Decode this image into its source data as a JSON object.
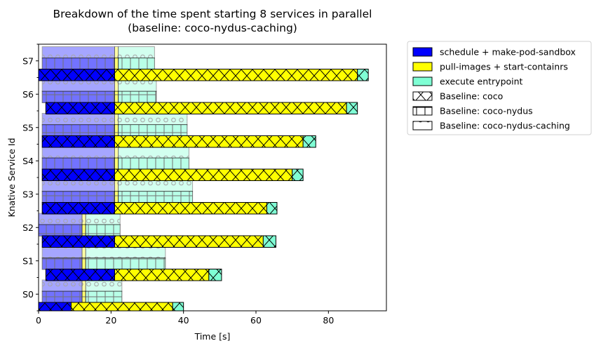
{
  "chart_data": {
    "type": "bar",
    "orientation": "horizontal",
    "stacked": true,
    "title": "Breakdown of the time spent starting 8 services in parallel",
    "subtitle": "(baseline: coco-nydus-caching)",
    "xlabel": "Time [s]",
    "ylabel": "Knative Service Id",
    "xlim": [
      0,
      96
    ],
    "xticks": [
      0,
      20,
      40,
      60,
      80
    ],
    "categories": [
      "S0",
      "S1",
      "S2",
      "S3",
      "S4",
      "S5",
      "S6",
      "S7"
    ],
    "stages": [
      {
        "name": "schedule + make-pod-sandbox",
        "color": "#0000ff"
      },
      {
        "name": "pull-images + start-containrs",
        "color": "#ffff00"
      },
      {
        "name": "execute entrypoint",
        "color": "#7fffd4"
      }
    ],
    "baselines": [
      {
        "name": "Baseline: coco",
        "hatch": "x",
        "alpha": 1.0
      },
      {
        "name": "Baseline: coco-nydus",
        "hatch": "grid",
        "alpha": 0.55
      },
      {
        "name": "Baseline: coco-nydus-caching",
        "hatch": "circles",
        "alpha": 0.35
      }
    ],
    "series": [
      {
        "baseline": "Baseline: coco",
        "segments": [
          [
            [
              0,
              9
            ],
            [
              9,
              37
            ],
            [
              37,
              40
            ]
          ],
          [
            [
              2,
              21
            ],
            [
              21,
              47
            ],
            [
              47,
              50.5
            ]
          ],
          [
            [
              1,
              21
            ],
            [
              21,
              62
            ],
            [
              62,
              65.5
            ]
          ],
          [
            [
              1,
              21
            ],
            [
              21,
              63
            ],
            [
              63,
              65.8
            ]
          ],
          [
            [
              1,
              21
            ],
            [
              21,
              70
            ],
            [
              70,
              73
            ]
          ],
          [
            [
              1,
              21
            ],
            [
              21,
              73
            ],
            [
              73,
              76.5
            ]
          ],
          [
            [
              2,
              21
            ],
            [
              21,
              85
            ],
            [
              85,
              88
            ]
          ],
          [
            [
              0,
              21
            ],
            [
              21,
              88
            ],
            [
              88,
              91
            ]
          ]
        ]
      },
      {
        "baseline": "Baseline: coco-nydus",
        "segments": [
          [
            [
              1,
              12
            ],
            [
              12,
              13
            ],
            [
              13,
              23
            ]
          ],
          [
            [
              1,
              12
            ],
            [
              12,
              13
            ],
            [
              13,
              35
            ]
          ],
          [
            [
              0,
              12
            ],
            [
              12,
              13
            ],
            [
              13,
              22.5
            ]
          ],
          [
            [
              1,
              21
            ],
            [
              21,
              22
            ],
            [
              22,
              42.5
            ]
          ],
          [
            [
              1,
              21
            ],
            [
              21,
              22
            ],
            [
              22,
              41.5
            ]
          ],
          [
            [
              1,
              21
            ],
            [
              21,
              22
            ],
            [
              22,
              41
            ]
          ],
          [
            [
              1,
              21
            ],
            [
              21,
              22
            ],
            [
              22,
              32.5
            ]
          ],
          [
            [
              1,
              21
            ],
            [
              21,
              22
            ],
            [
              22,
              32
            ]
          ]
        ]
      },
      {
        "baseline": "Baseline: coco-nydus-caching",
        "segments": [
          [
            [
              1,
              12
            ],
            [
              12,
              13
            ],
            [
              13,
              23
            ]
          ],
          [
            [
              1,
              12
            ],
            [
              12,
              13
            ],
            [
              13,
              35
            ]
          ],
          [
            [
              0,
              12
            ],
            [
              12,
              13
            ],
            [
              13,
              22.5
            ]
          ],
          [
            [
              1,
              21
            ],
            [
              21,
              22
            ],
            [
              22,
              42.5
            ]
          ],
          [
            [
              1,
              21
            ],
            [
              21,
              22
            ],
            [
              22,
              41.5
            ]
          ],
          [
            [
              1,
              21
            ],
            [
              21,
              22
            ],
            [
              22,
              41
            ]
          ],
          [
            [
              1,
              21
            ],
            [
              21,
              22
            ],
            [
              22,
              32.5
            ]
          ],
          [
            [
              1,
              21
            ],
            [
              21,
              22
            ],
            [
              22,
              32
            ]
          ]
        ]
      }
    ],
    "legend_position": "outside-right",
    "grid": false
  }
}
